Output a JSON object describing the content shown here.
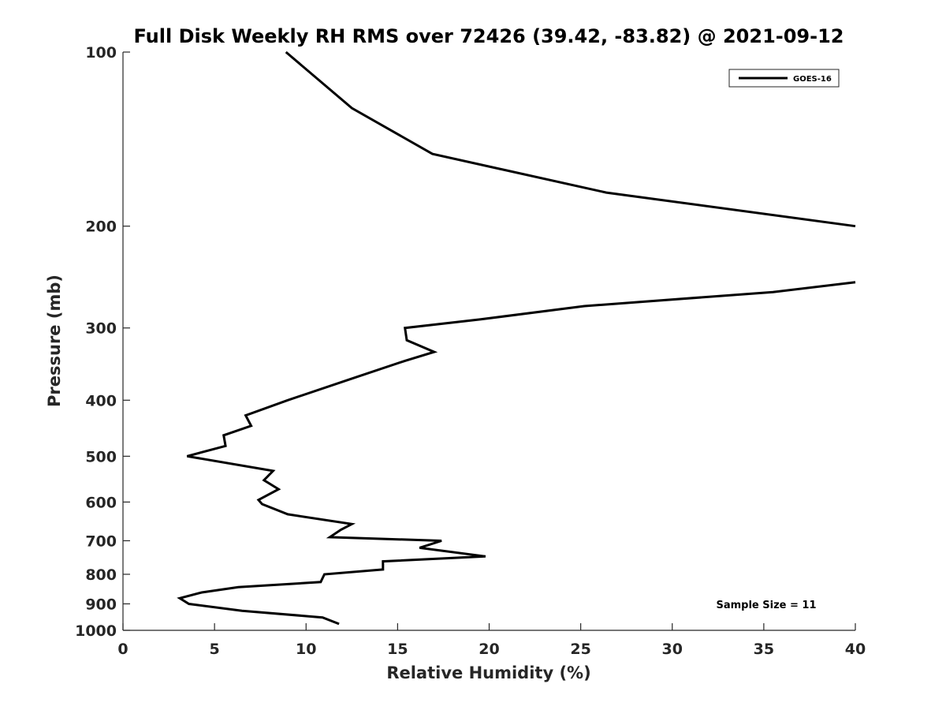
{
  "chart_data": {
    "type": "line",
    "title": "Full Disk Weekly RH RMS over 72426 (39.42, -83.82) @ 2021-09-12",
    "xlabel": "Relative Humidity (%)",
    "ylabel": "Pressure (mb)",
    "xlim": [
      0,
      40
    ],
    "ylim": [
      100,
      1000
    ],
    "y_scale": "log",
    "y_reversed": true,
    "x_ticks": [
      "0",
      "5",
      "10",
      "15",
      "20",
      "25",
      "30",
      "35",
      "40"
    ],
    "y_ticks": [
      "100",
      "200",
      "300",
      "400",
      "500",
      "600",
      "700",
      "800",
      "900",
      "1000"
    ],
    "legend_position": "top-right",
    "grid": false,
    "annotation": "Sample Size = 11",
    "series": [
      {
        "name": "GOES-16",
        "color": "#000000",
        "points": [
          {
            "x": 8.9,
            "y": 100
          },
          {
            "x": 12.5,
            "y": 125
          },
          {
            "x": 16.9,
            "y": 150
          },
          {
            "x": 26.4,
            "y": 175
          },
          {
            "x": 40.0,
            "y": 200
          },
          {
            "x": null,
            "y": 225
          },
          {
            "x": 40.0,
            "y": 250
          },
          {
            "x": 35.5,
            "y": 260
          },
          {
            "x": 25.2,
            "y": 275
          },
          {
            "x": 19.5,
            "y": 290
          },
          {
            "x": 15.4,
            "y": 300
          },
          {
            "x": 15.5,
            "y": 315
          },
          {
            "x": 17.0,
            "y": 330
          },
          {
            "x": 15.4,
            "y": 342
          },
          {
            "x": 12.5,
            "y": 367
          },
          {
            "x": 9.0,
            "y": 400
          },
          {
            "x": 6.7,
            "y": 425
          },
          {
            "x": 7.0,
            "y": 443
          },
          {
            "x": 5.5,
            "y": 460
          },
          {
            "x": 5.6,
            "y": 480
          },
          {
            "x": 3.5,
            "y": 500
          },
          {
            "x": 8.2,
            "y": 530
          },
          {
            "x": 7.7,
            "y": 550
          },
          {
            "x": 8.5,
            "y": 570
          },
          {
            "x": 7.4,
            "y": 595
          },
          {
            "x": 7.6,
            "y": 605
          },
          {
            "x": 9.0,
            "y": 630
          },
          {
            "x": 12.5,
            "y": 655
          },
          {
            "x": 11.9,
            "y": 670
          },
          {
            "x": 11.3,
            "y": 690
          },
          {
            "x": 17.4,
            "y": 700
          },
          {
            "x": 16.2,
            "y": 720
          },
          {
            "x": 19.8,
            "y": 745
          },
          {
            "x": 14.2,
            "y": 760
          },
          {
            "x": 14.2,
            "y": 785
          },
          {
            "x": 11.0,
            "y": 800
          },
          {
            "x": 10.8,
            "y": 825
          },
          {
            "x": 6.3,
            "y": 842
          },
          {
            "x": 4.3,
            "y": 860
          },
          {
            "x": 3.1,
            "y": 880
          },
          {
            "x": 3.6,
            "y": 900
          },
          {
            "x": 6.5,
            "y": 925
          },
          {
            "x": 10.9,
            "y": 950
          },
          {
            "x": 11.8,
            "y": 975
          }
        ]
      }
    ]
  }
}
